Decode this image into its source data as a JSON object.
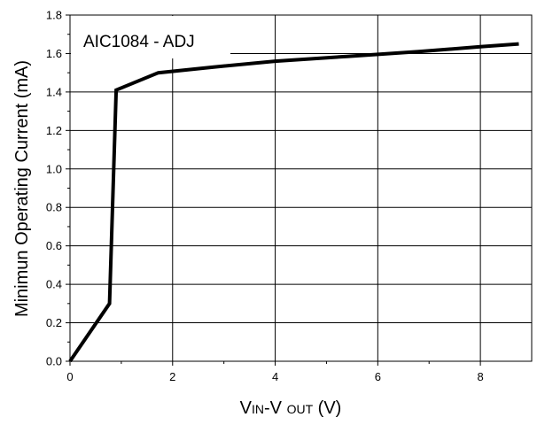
{
  "chart_data": {
    "type": "line",
    "annotation": "AIC1084 - ADJ",
    "ylabel": "Minimun Operating Current (mA)",
    "xlabel": {
      "parts": [
        {
          "text": "V",
          "sub": false
        },
        {
          "text": "IN",
          "sub": true
        },
        {
          "text": "-V ",
          "sub": false
        },
        {
          "text": "OUT",
          "sub": true
        },
        {
          "text": " (V)",
          "sub": false
        }
      ]
    },
    "xlim": [
      0,
      9
    ],
    "ylim": [
      0,
      1.8
    ],
    "x_ticks": [
      "0",
      "2",
      "4",
      "6",
      "8"
    ],
    "x_tick_values": [
      0,
      2,
      4,
      6,
      8
    ],
    "y_ticks": [
      "0.0",
      "0.2",
      "0.4",
      "0.6",
      "0.8",
      "1.0",
      "1.2",
      "1.4",
      "1.6",
      "1.8"
    ],
    "y_tick_values": [
      0,
      0.2,
      0.4,
      0.6,
      0.8,
      1.0,
      1.2,
      1.4,
      1.6,
      1.8
    ],
    "grid": true,
    "line_color": "#000000",
    "series": [
      {
        "x": [
          0,
          0.77,
          0.9,
          1.72,
          2.8,
          4.0,
          5.4,
          6.8,
          8.0,
          8.75
        ],
        "y": [
          0.0,
          0.3,
          1.41,
          1.5,
          1.53,
          1.56,
          1.585,
          1.61,
          1.635,
          1.65
        ]
      }
    ]
  }
}
